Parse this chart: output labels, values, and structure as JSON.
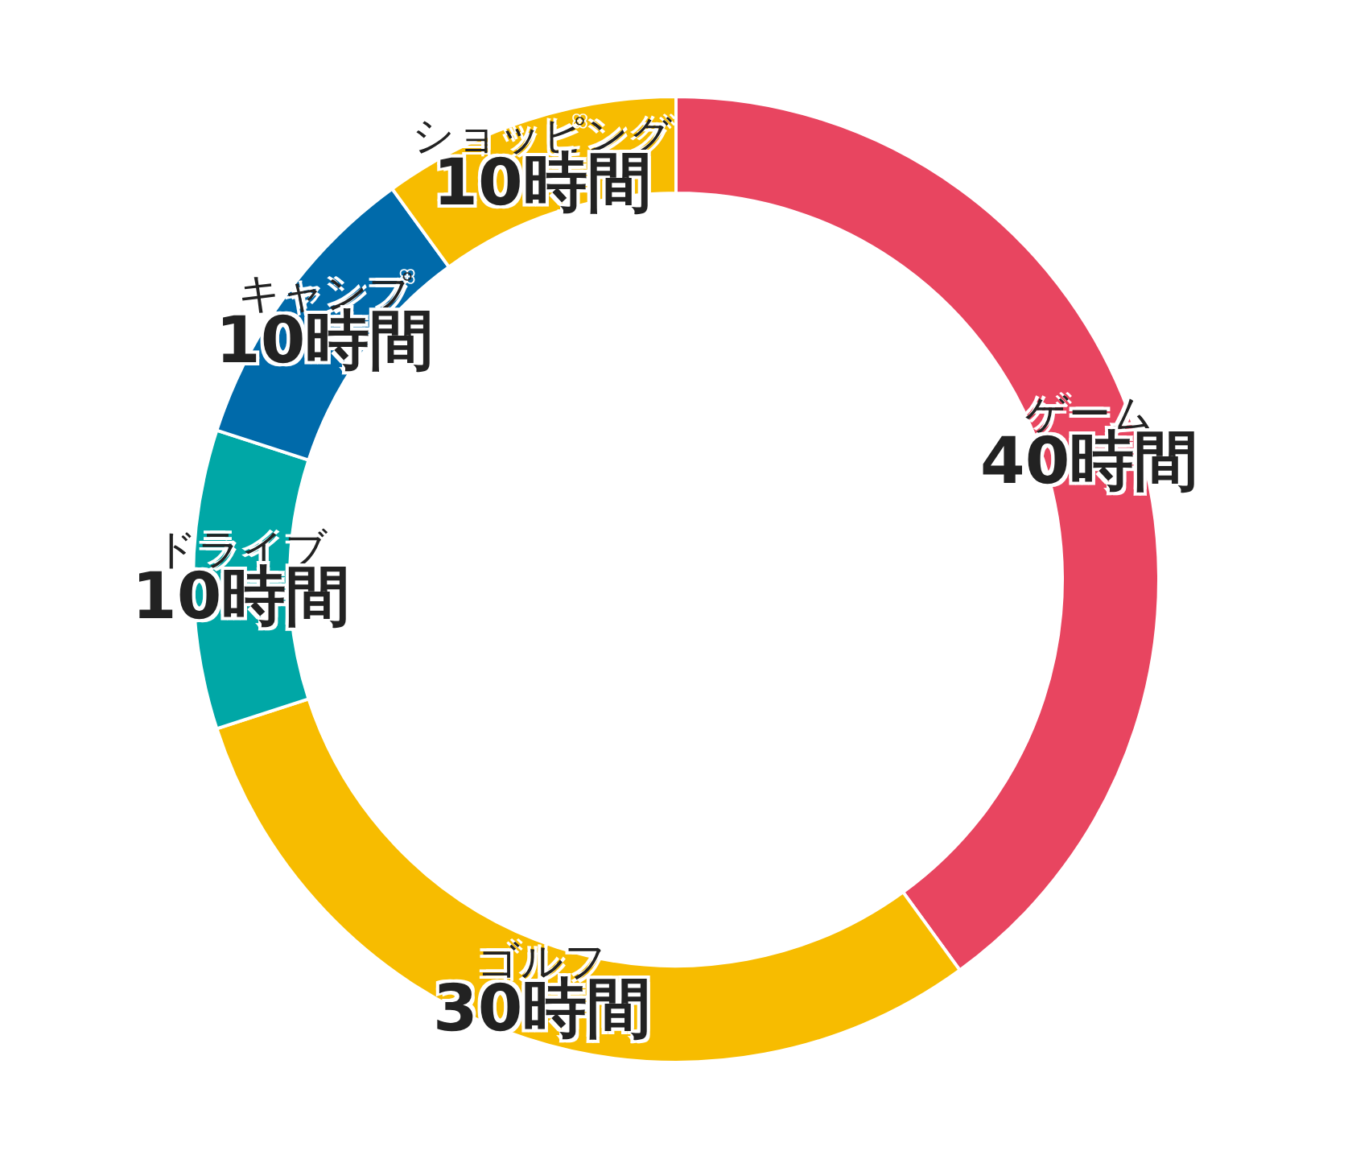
{
  "chart_data": {
    "type": "donut",
    "categories": [
      "ゲーム",
      "ゴルフ",
      "ドライブ",
      "キャンプ",
      "ショッピング"
    ],
    "values": [
      40,
      30,
      10,
      10,
      10
    ],
    "colors": [
      "#e84560",
      "#f7bc00",
      "#00a7a6",
      "#006aaa",
      "#f7bc00"
    ],
    "value_labels": [
      "40時間",
      "30時間",
      "10時間",
      "10時間",
      "10時間"
    ],
    "legend": false
  }
}
